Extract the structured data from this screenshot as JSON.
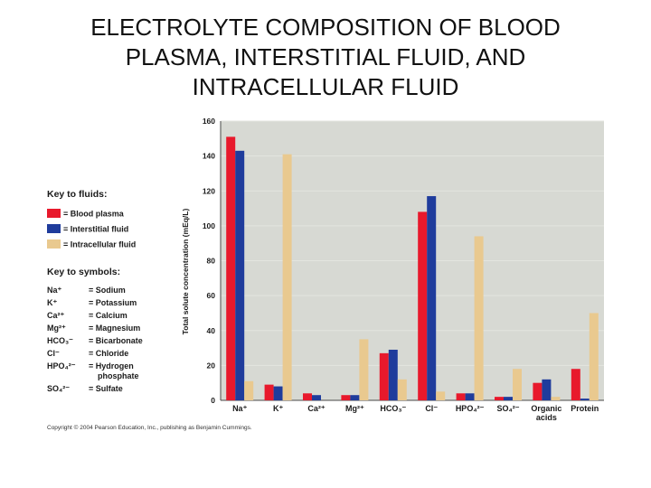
{
  "slide": {
    "title_lines": [
      "ELECTROLYTE COMPOSITION OF BLOOD",
      "PLASMA, INTERSTITIAL FLUID, AND",
      "INTRACELLULAR FLUID"
    ],
    "copyright": "Copyright © 2004 Pearson Education, Inc., publishing as Benjamin Cummings."
  },
  "colors": {
    "blood_plasma": "#e8192c",
    "interstitial_fluid": "#1f3c9c",
    "intracellular_fluid": "#e9c98f",
    "plot_background": "#d7d9d3"
  },
  "chart_data": {
    "type": "bar",
    "ylabel": "Total solute concentration (mEq/L)",
    "ylim": [
      0,
      160
    ],
    "yticks": [
      0,
      20,
      40,
      60,
      80,
      100,
      120,
      140,
      160
    ],
    "grid": true,
    "categories": [
      [
        "Na⁺"
      ],
      [
        "K⁺"
      ],
      [
        "Ca²⁺"
      ],
      [
        "Mg²⁺"
      ],
      [
        "HCO₃⁻"
      ],
      [
        "Cl⁻"
      ],
      [
        "HPO₄²⁻"
      ],
      [
        "SO₄²⁻"
      ],
      [
        "Organic",
        "acids"
      ],
      [
        "Protein"
      ]
    ],
    "series": [
      {
        "name": "Blood plasma",
        "values": [
          151,
          9,
          4,
          3,
          27,
          108,
          4,
          2,
          10,
          18
        ]
      },
      {
        "name": "Interstitial fluid",
        "values": [
          143,
          8,
          3,
          3,
          29,
          117,
          4,
          2,
          12,
          1
        ]
      },
      {
        "name": "Intracellular fluid",
        "values": [
          11,
          141,
          0,
          35,
          12,
          5,
          94,
          18,
          2,
          50
        ]
      }
    ]
  },
  "legend": {
    "fluids_heading": "Key to fluids:",
    "fluids": [
      {
        "label": "= Blood plasma"
      },
      {
        "label": "= Interstitial fluid"
      },
      {
        "label": "= Intracellular fluid"
      }
    ],
    "symbols_heading": "Key to symbols:",
    "symbols": [
      {
        "symbol": "Na⁺",
        "meaning": [
          "= Sodium"
        ]
      },
      {
        "symbol": "K⁺",
        "meaning": [
          "= Potassium"
        ]
      },
      {
        "symbol": "Ca²⁺",
        "meaning": [
          "= Calcium"
        ]
      },
      {
        "symbol": "Mg²⁺",
        "meaning": [
          "= Magnesium"
        ]
      },
      {
        "symbol": "HCO₃⁻",
        "meaning": [
          "= Bicarbonate"
        ]
      },
      {
        "symbol": "Cl⁻",
        "meaning": [
          "= Chloride"
        ]
      },
      {
        "symbol": "HPO₄²⁻",
        "meaning": [
          "= Hydrogen",
          "phosphate"
        ]
      },
      {
        "symbol": "SO₄²⁻",
        "meaning": [
          "= Sulfate"
        ]
      }
    ]
  }
}
